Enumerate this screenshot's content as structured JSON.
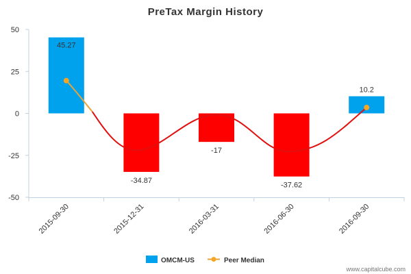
{
  "chart_data": {
    "type": "bar",
    "title": "PreTax Margin History",
    "categories": [
      "2015-09-30",
      "2015-12-31",
      "2016-03-31",
      "2016-06-30",
      "2016-09-30"
    ],
    "series": [
      {
        "name": "OMCM-US",
        "type": "bar",
        "values": [
          45.27,
          -34.87,
          -17,
          -37.62,
          10.2
        ],
        "labels": [
          "45.27",
          "-34.87",
          "-17",
          "-37.62",
          "10.2"
        ],
        "positive_color": "#00a2ed",
        "negative_color": "#ff0000"
      },
      {
        "name": "Peer Median",
        "type": "line",
        "values": [
          19.5,
          null,
          null,
          null,
          3.5
        ],
        "curve_min": -22,
        "line_color": "#e8a33a",
        "marker_color": "#f5a623",
        "trend_color": "#e01010"
      }
    ],
    "yticks": [
      50,
      25,
      0,
      -25,
      -50
    ],
    "ylim": [
      -50,
      50
    ],
    "xlabel": "",
    "ylabel": "",
    "grid": false,
    "legend": "bottom"
  },
  "credit": "www.capitalcube.com"
}
